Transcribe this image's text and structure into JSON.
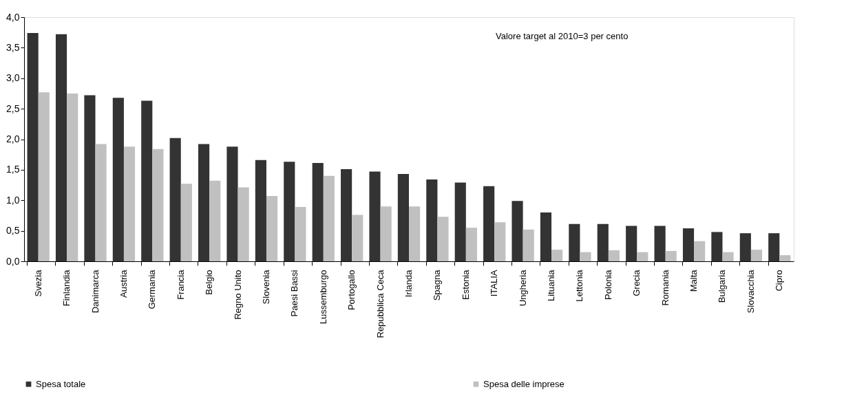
{
  "chart_data": {
    "type": "bar",
    "categories": [
      "Svezia",
      "Finlandia",
      "Danimarca",
      "Austria",
      "Germania",
      "Francia",
      "Belgio",
      "Regno Unito",
      "Slovenia",
      "Paesi Bassi",
      "Lussemburgo",
      "Portogallo",
      "Repubblica Ceca",
      "Irlanda",
      "Spagna",
      "Estonia",
      "ITALIA",
      "Ungheria",
      "Lituania",
      "Lettonia",
      "Polonia",
      "Grecia",
      "Romania",
      "Malta",
      "Bulgaria",
      "Slovacchia",
      "Cipro"
    ],
    "series": [
      {
        "name": "Spesa totale",
        "color": "#333333",
        "values": [
          3.74,
          3.72,
          2.72,
          2.68,
          2.63,
          2.02,
          1.92,
          1.88,
          1.66,
          1.63,
          1.61,
          1.51,
          1.47,
          1.43,
          1.34,
          1.29,
          1.23,
          0.99,
          0.8,
          0.61,
          0.61,
          0.58,
          0.58,
          0.54,
          0.48,
          0.46,
          0.46
        ]
      },
      {
        "name": "Spesa delle imprese",
        "color": "#c0c0c0",
        "values": [
          2.77,
          2.75,
          1.92,
          1.88,
          1.84,
          1.27,
          1.32,
          1.21,
          1.07,
          0.89,
          1.4,
          0.76,
          0.9,
          0.9,
          0.73,
          0.55,
          0.64,
          0.52,
          0.19,
          0.15,
          0.18,
          0.15,
          0.17,
          0.33,
          0.15,
          0.19,
          0.1
        ]
      }
    ],
    "ylim": [
      0,
      4
    ],
    "yticks": [
      {
        "value": 0,
        "label": "0,0"
      },
      {
        "value": 0.5,
        "label": "0,5"
      },
      {
        "value": 1,
        "label": "1,0"
      },
      {
        "value": 1.5,
        "label": "1,5"
      },
      {
        "value": 2,
        "label": "2,0"
      },
      {
        "value": 2.5,
        "label": "2,5"
      },
      {
        "value": 3,
        "label": "3,0"
      },
      {
        "value": 3.5,
        "label": "3,5"
      },
      {
        "value": 4,
        "label": "4,0"
      }
    ],
    "annotations": [
      "Valore target al 2010=3 per cento"
    ],
    "legend": "bottom",
    "grid": false
  }
}
